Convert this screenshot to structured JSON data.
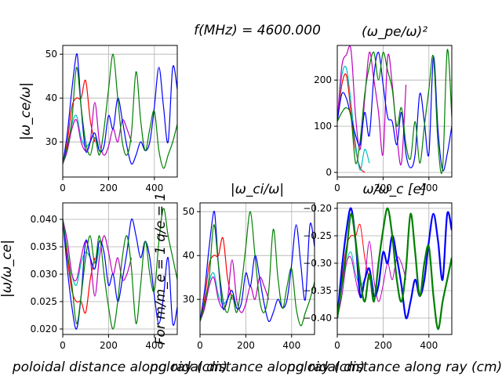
{
  "figure_title": "f(MHz) = 4600.000",
  "chart_data": [
    {
      "id": "wce",
      "type": "line",
      "title": "",
      "ylabel": "|ω_ce/ω|",
      "xlabel": "",
      "xlim": [
        0,
        500
      ],
      "ylim": [
        22,
        52
      ],
      "xticks": [
        0,
        200,
        400
      ],
      "yticks": [
        30,
        40,
        50
      ],
      "ytick_labels": [
        "30",
        "40",
        "50"
      ],
      "grid": true,
      "series": [
        {
          "color": "#ff0000",
          "x": [
            0,
            20,
            40,
            60,
            80,
            100,
            120,
            140
          ],
          "y": [
            25,
            30,
            38,
            40,
            40,
            44,
            35,
            30
          ]
        },
        {
          "color": "#00bfbf",
          "x": [
            0,
            20,
            40,
            60,
            80,
            100,
            120,
            140,
            160
          ],
          "y": [
            25,
            28,
            34,
            36,
            31,
            29,
            30,
            32,
            28
          ]
        },
        {
          "color": "#bf00bf",
          "x": [
            0,
            20,
            40,
            60,
            80,
            100,
            120,
            140,
            160,
            180,
            200,
            220,
            240,
            260,
            280,
            300
          ],
          "y": [
            25,
            28,
            33,
            35,
            30,
            28,
            30,
            39,
            30,
            27,
            29,
            33,
            30,
            35,
            33,
            30
          ]
        },
        {
          "color": "#0000ff",
          "x": [
            0,
            20,
            40,
            60,
            70,
            80,
            100,
            120,
            140,
            160,
            180,
            200,
            220,
            240,
            260,
            280,
            300,
            320,
            340,
            360,
            380,
            400,
            420,
            440,
            460,
            480,
            500
          ],
          "y": [
            25,
            32,
            42,
            50,
            46,
            38,
            28,
            30,
            32,
            28,
            29,
            36,
            33,
            40,
            35,
            29,
            25,
            27,
            30,
            28,
            30,
            38,
            47,
            38,
            30,
            47,
            42
          ]
        },
        {
          "color": "#008000",
          "x": [
            0,
            20,
            40,
            60,
            80,
            100,
            120,
            140,
            160,
            180,
            200,
            220,
            240,
            260,
            280,
            300,
            320,
            340,
            360,
            380,
            400,
            420,
            440,
            460,
            480,
            500
          ],
          "y": [
            25,
            29,
            35,
            47,
            38,
            30,
            27,
            31,
            27,
            33,
            42,
            50,
            40,
            30,
            27,
            32,
            46,
            35,
            28,
            33,
            37,
            28,
            24,
            27,
            30,
            34
          ]
        }
      ]
    },
    {
      "id": "wpe",
      "type": "line",
      "title": "(ω_pe/ω)²",
      "ylabel": "",
      "xlabel": "",
      "xlim": [
        0,
        500
      ],
      "ylim": [
        -10,
        275
      ],
      "xticks": [
        0,
        200,
        400
      ],
      "yticks": [
        0,
        100,
        200
      ],
      "ytick_labels": [
        "0",
        "100",
        "200"
      ],
      "grid": true,
      "series": [
        {
          "color": "#ff0000",
          "x": [
            0,
            20,
            40,
            60,
            80,
            100,
            120
          ],
          "y": [
            110,
            190,
            210,
            130,
            50,
            10,
            0
          ]
        },
        {
          "color": "#00bfbf",
          "x": [
            0,
            20,
            40,
            60,
            80,
            100,
            120,
            140
          ],
          "y": [
            110,
            210,
            225,
            150,
            60,
            5,
            50,
            20
          ]
        },
        {
          "color": "#bf00bf",
          "x": [
            0,
            20,
            40,
            60,
            80,
            100,
            120,
            140,
            160,
            180,
            200,
            220,
            240,
            260,
            280,
            300
          ],
          "y": [
            110,
            230,
            255,
            265,
            120,
            50,
            160,
            260,
            200,
            130,
            40,
            250,
            190,
            80,
            20,
            190
          ]
        },
        {
          "color": "#0000ff",
          "x": [
            0,
            20,
            40,
            60,
            80,
            100,
            120,
            140,
            160,
            180,
            200,
            220,
            240,
            260,
            280,
            300,
            320,
            340,
            360,
            380,
            400,
            420,
            440,
            460,
            480,
            500
          ],
          "y": [
            110,
            170,
            160,
            120,
            80,
            60,
            130,
            80,
            210,
            260,
            190,
            120,
            110,
            60,
            130,
            40,
            10,
            40,
            170,
            110,
            40,
            250,
            90,
            5,
            40,
            100
          ]
        },
        {
          "color": "#008000",
          "x": [
            0,
            20,
            40,
            60,
            80,
            100,
            120,
            140,
            160,
            180,
            200,
            220,
            240,
            260,
            280,
            300,
            320,
            340,
            360,
            380,
            400,
            420,
            440,
            460,
            480,
            500
          ],
          "y": [
            110,
            130,
            140,
            120,
            20,
            70,
            170,
            230,
            260,
            200,
            260,
            220,
            180,
            100,
            140,
            60,
            30,
            110,
            20,
            100,
            180,
            250,
            60,
            10,
            265,
            120
          ]
        }
      ]
    },
    {
      "id": "wwce",
      "type": "line",
      "title": "",
      "ylabel": "|ω/ω_ce|",
      "xlabel": "poloidal distance along ray  (cm)",
      "xlim": [
        0,
        500
      ],
      "ylim": [
        0.019,
        0.043
      ],
      "xticks": [
        0,
        200,
        400
      ],
      "yticks": [
        0.02,
        0.025,
        0.03,
        0.035,
        0.04
      ],
      "ytick_labels": [
        "0.020",
        "0.025",
        "0.030",
        "0.035",
        "0.040"
      ],
      "grid": true,
      "series": [
        {
          "color": "#ff0000",
          "x": [
            0,
            20,
            40,
            60,
            80,
            100,
            120,
            140
          ],
          "y": [
            0.04,
            0.033,
            0.027,
            0.025,
            0.025,
            0.023,
            0.029,
            0.033
          ]
        },
        {
          "color": "#00bfbf",
          "x": [
            0,
            20,
            40,
            60,
            80,
            100,
            120,
            140,
            160
          ],
          "y": [
            0.04,
            0.036,
            0.03,
            0.028,
            0.032,
            0.034,
            0.033,
            0.031,
            0.035
          ]
        },
        {
          "color": "#bf00bf",
          "x": [
            0,
            20,
            40,
            60,
            80,
            100,
            120,
            140,
            160,
            180,
            200,
            220,
            240,
            260,
            280,
            300
          ],
          "y": [
            0.04,
            0.036,
            0.03,
            0.029,
            0.033,
            0.036,
            0.033,
            0.026,
            0.033,
            0.037,
            0.034,
            0.03,
            0.033,
            0.029,
            0.03,
            0.033
          ]
        },
        {
          "color": "#0000ff",
          "x": [
            0,
            20,
            40,
            60,
            80,
            100,
            120,
            140,
            160,
            180,
            200,
            220,
            240,
            260,
            280,
            300,
            320,
            340,
            360,
            380,
            400,
            420,
            440,
            460,
            480,
            500
          ],
          "y": [
            0.04,
            0.031,
            0.024,
            0.02,
            0.026,
            0.036,
            0.033,
            0.031,
            0.036,
            0.034,
            0.028,
            0.03,
            0.025,
            0.029,
            0.034,
            0.04,
            0.037,
            0.033,
            0.036,
            0.033,
            0.026,
            0.021,
            0.026,
            0.033,
            0.021,
            0.024
          ]
        },
        {
          "color": "#008000",
          "x": [
            0,
            20,
            40,
            60,
            80,
            100,
            120,
            140,
            160,
            180,
            200,
            220,
            240,
            260,
            280,
            300,
            320,
            340,
            360,
            380,
            400,
            420,
            440,
            460,
            480,
            500
          ],
          "y": [
            0.04,
            0.034,
            0.028,
            0.021,
            0.026,
            0.033,
            0.037,
            0.032,
            0.037,
            0.03,
            0.024,
            0.02,
            0.025,
            0.033,
            0.037,
            0.031,
            0.021,
            0.028,
            0.036,
            0.03,
            0.027,
            0.036,
            0.042,
            0.037,
            0.033,
            0.029
          ]
        }
      ]
    },
    {
      "id": "wci",
      "type": "line",
      "title": "|ω_ci/ω|",
      "ylabel": "For  m/m_e = 1  q/e = 1",
      "xlabel": "poloidal distance along ray  (cm)",
      "xlim": [
        0,
        500
      ],
      "ylim": [
        22,
        52
      ],
      "xticks": [
        0,
        200,
        400
      ],
      "yticks": [
        30,
        40,
        50
      ],
      "ytick_labels": [
        "30",
        "40",
        "50"
      ],
      "grid": true,
      "series": [
        {
          "color": "#ff0000",
          "x": [
            0,
            20,
            40,
            60,
            80,
            100,
            120,
            140
          ],
          "y": [
            25,
            30,
            38,
            40,
            40,
            44,
            35,
            30
          ]
        },
        {
          "color": "#00bfbf",
          "x": [
            0,
            20,
            40,
            60,
            80,
            100,
            120,
            140,
            160
          ],
          "y": [
            25,
            28,
            34,
            36,
            31,
            29,
            30,
            32,
            28
          ]
        },
        {
          "color": "#bf00bf",
          "x": [
            0,
            20,
            40,
            60,
            80,
            100,
            120,
            140,
            160,
            180,
            200,
            220,
            240,
            260,
            280,
            300
          ],
          "y": [
            25,
            28,
            33,
            35,
            30,
            28,
            30,
            39,
            30,
            27,
            29,
            33,
            30,
            35,
            33,
            30
          ]
        },
        {
          "color": "#0000ff",
          "x": [
            0,
            20,
            40,
            60,
            70,
            80,
            100,
            120,
            140,
            160,
            180,
            200,
            220,
            240,
            260,
            280,
            300,
            320,
            340,
            360,
            380,
            400,
            420,
            440,
            460,
            480,
            500
          ],
          "y": [
            25,
            32,
            42,
            50,
            46,
            38,
            28,
            30,
            32,
            28,
            29,
            36,
            33,
            40,
            35,
            29,
            25,
            27,
            30,
            28,
            30,
            38,
            47,
            38,
            30,
            47,
            42
          ]
        },
        {
          "color": "#008000",
          "x": [
            0,
            20,
            40,
            60,
            80,
            100,
            120,
            140,
            160,
            180,
            200,
            220,
            240,
            260,
            280,
            300,
            320,
            340,
            360,
            380,
            400,
            420,
            440,
            460,
            480,
            500
          ],
          "y": [
            25,
            29,
            35,
            47,
            38,
            30,
            27,
            31,
            27,
            33,
            42,
            50,
            40,
            30,
            27,
            32,
            46,
            35,
            28,
            33,
            37,
            28,
            24,
            27,
            30,
            34
          ]
        }
      ]
    },
    {
      "id": "wwc",
      "type": "line",
      "title": "ω/ω_c  [e]",
      "ylabel": "",
      "xlabel": "poloidal distance along ray  (cm)",
      "xlim": [
        0,
        500
      ],
      "ylim": [
        -0.43,
        -0.19
      ],
      "xticks": [
        0,
        200,
        400
      ],
      "yticks": [
        -0.4,
        -0.35,
        -0.3,
        -0.25,
        -0.2
      ],
      "ytick_labels": [
        "−0.40",
        "−0.35",
        "−0.30",
        "−0.25",
        "−0.20"
      ],
      "grid": true,
      "series": [
        {
          "color": "#ff0000",
          "width": 1,
          "x": [
            0,
            20,
            40,
            60,
            80,
            100,
            120,
            140
          ],
          "y": [
            -0.4,
            -0.33,
            -0.27,
            -0.25,
            -0.25,
            -0.23,
            -0.29,
            -0.33
          ]
        },
        {
          "color": "#00bfbf",
          "width": 1,
          "x": [
            0,
            20,
            40,
            60,
            80,
            100,
            120,
            140,
            160
          ],
          "y": [
            -0.4,
            -0.36,
            -0.3,
            -0.28,
            -0.32,
            -0.34,
            -0.33,
            -0.31,
            -0.35
          ]
        },
        {
          "color": "#bf00bf",
          "width": 1,
          "x": [
            0,
            20,
            40,
            60,
            80,
            100,
            120,
            140,
            160,
            180,
            200,
            220,
            240,
            260,
            280,
            300
          ],
          "y": [
            -0.4,
            -0.36,
            -0.3,
            -0.29,
            -0.33,
            -0.36,
            -0.33,
            -0.26,
            -0.33,
            -0.37,
            -0.34,
            -0.3,
            -0.33,
            -0.29,
            -0.3,
            -0.33
          ]
        },
        {
          "color": "#0000ff",
          "width": 2.2,
          "x": [
            0,
            20,
            40,
            60,
            80,
            100,
            120,
            140,
            160,
            180,
            200,
            220,
            240,
            260,
            280,
            300,
            320,
            340,
            360,
            380,
            400,
            420,
            440,
            460,
            480,
            500
          ],
          "y": [
            -0.4,
            -0.31,
            -0.24,
            -0.2,
            -0.26,
            -0.36,
            -0.33,
            -0.31,
            -0.36,
            -0.34,
            -0.28,
            -0.3,
            -0.25,
            -0.29,
            -0.34,
            -0.4,
            -0.37,
            -0.33,
            -0.36,
            -0.33,
            -0.26,
            -0.21,
            -0.26,
            -0.33,
            -0.21,
            -0.24
          ]
        },
        {
          "color": "#008000",
          "width": 2.2,
          "x": [
            0,
            20,
            40,
            60,
            80,
            100,
            120,
            140,
            160,
            180,
            200,
            220,
            240,
            260,
            280,
            300,
            320,
            340,
            360,
            380,
            400,
            420,
            440,
            460,
            480,
            500
          ],
          "y": [
            -0.4,
            -0.34,
            -0.28,
            -0.21,
            -0.26,
            -0.33,
            -0.37,
            -0.32,
            -0.37,
            -0.3,
            -0.24,
            -0.2,
            -0.25,
            -0.33,
            -0.37,
            -0.31,
            -0.21,
            -0.28,
            -0.36,
            -0.3,
            -0.27,
            -0.36,
            -0.42,
            -0.37,
            -0.33,
            -0.29
          ]
        }
      ]
    }
  ]
}
